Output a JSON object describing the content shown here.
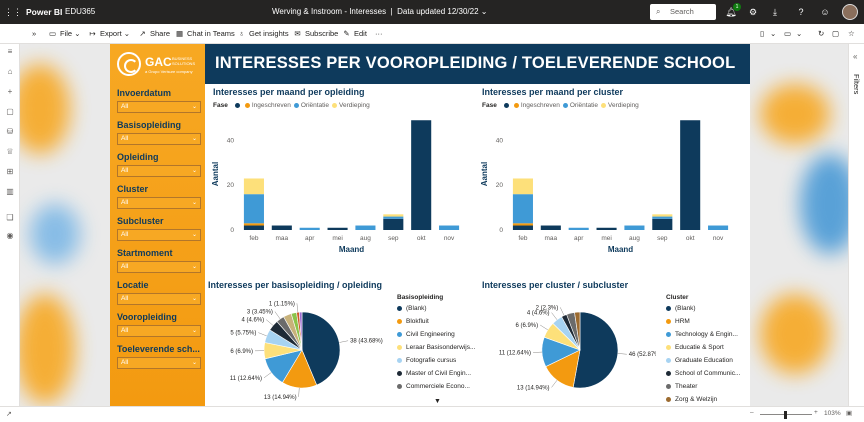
{
  "app": {
    "name": "Power BI",
    "workspace": "EDU365",
    "report_title": "Werving & Instroom - Interesses",
    "separator": "|",
    "data_updated": "Data updated 12/30/22",
    "search_placeholder": "Search",
    "notification_count": "1"
  },
  "toolbar": {
    "file": "File",
    "export": "Export",
    "share": "Share",
    "chat": "Chat in Teams",
    "insights": "Get insights",
    "subscribe": "Subscribe",
    "edit": "Edit",
    "more": "···"
  },
  "right_rail": {
    "filters": "Filters"
  },
  "logo": {
    "text": "GAC",
    "sub": "BUSINESS SOLUTIONS",
    "tagline": "a Grupo Verisure company"
  },
  "report": {
    "title": "INTERESSES PER VOOROPLEIDING / TOELEVERENDE SCHOOL"
  },
  "slicers": [
    {
      "label": "Invoerdatum",
      "value": "All"
    },
    {
      "label": "Basisopleiding",
      "value": "All"
    },
    {
      "label": "Opleiding",
      "value": "All"
    },
    {
      "label": "Cluster",
      "value": "All"
    },
    {
      "label": "Subcluster",
      "value": "All"
    },
    {
      "label": "Startmoment",
      "value": "All"
    },
    {
      "label": "Locatie",
      "value": "All"
    },
    {
      "label": "Vooropleiding",
      "value": "All"
    },
    {
      "label": "Toeleverende sch...",
      "value": "All"
    }
  ],
  "colors": {
    "navy": "#0e3a5c",
    "orange": "#f39a10",
    "blue": "#3f9ad6",
    "yellow": "#fde07a",
    "accent_orange": "#f7a823"
  },
  "legend_common": {
    "key": "Fase",
    "items": [
      "",
      "Ingeschreven",
      "Oriëntatie",
      "Verdieping"
    ]
  },
  "chart_data": [
    {
      "type": "bar",
      "stacked": true,
      "title": "Interesses per maand per opleiding",
      "xlabel": "Maand",
      "ylabel": "Aantal",
      "ylim": [
        0,
        50
      ],
      "yticks": [
        0,
        20,
        40
      ],
      "categories": [
        "feb",
        "maa",
        "apr",
        "mei",
        "aug",
        "sep",
        "okt",
        "nov"
      ],
      "series": [
        {
          "name": "",
          "color": "#0e3a5c",
          "values": [
            2,
            2,
            0,
            1,
            0,
            5,
            49,
            0
          ]
        },
        {
          "name": "Ingeschreven",
          "color": "#f39a10",
          "values": [
            1,
            0,
            0,
            0,
            0,
            0,
            0,
            0
          ]
        },
        {
          "name": "Oriëntatie",
          "color": "#3f9ad6",
          "values": [
            13,
            0,
            1,
            0,
            2,
            1,
            0,
            2
          ]
        },
        {
          "name": "Verdieping",
          "color": "#fde07a",
          "values": [
            7,
            0,
            0,
            0,
            0,
            1,
            0,
            0
          ]
        }
      ]
    },
    {
      "type": "bar",
      "stacked": true,
      "title": "Interesses per maand per cluster",
      "xlabel": "Maand",
      "ylabel": "Aantal",
      "ylim": [
        0,
        50
      ],
      "yticks": [
        0,
        20,
        40
      ],
      "categories": [
        "feb",
        "maa",
        "apr",
        "mei",
        "aug",
        "sep",
        "okt",
        "nov"
      ],
      "series": [
        {
          "name": "",
          "color": "#0e3a5c",
          "values": [
            2,
            2,
            0,
            1,
            0,
            5,
            49,
            0
          ]
        },
        {
          "name": "Ingeschreven",
          "color": "#f39a10",
          "values": [
            1,
            0,
            0,
            0,
            0,
            0,
            0,
            0
          ]
        },
        {
          "name": "Oriëntatie",
          "color": "#3f9ad6",
          "values": [
            13,
            0,
            1,
            0,
            2,
            1,
            0,
            2
          ]
        },
        {
          "name": "Verdieping",
          "color": "#fde07a",
          "values": [
            7,
            0,
            0,
            0,
            0,
            1,
            0,
            0
          ]
        }
      ]
    },
    {
      "type": "pie",
      "title": "Interesses per basisopleiding / opleiding",
      "legend_title": "Basisopleiding",
      "slices": [
        {
          "label": "(Blank)",
          "value": 38,
          "pct": "43.68%",
          "color": "#0e3a5c",
          "callout": "38 (43.68%)"
        },
        {
          "label": "Blokfluit",
          "value": 13,
          "pct": "14.94%",
          "color": "#f39a10",
          "callout": "13 (14.94%)"
        },
        {
          "label": "Civil Engineering",
          "value": 11,
          "pct": "12.64%",
          "color": "#3f9ad6",
          "callout": "11 (12.64%)"
        },
        {
          "label": "Leraar Basisonderwijs",
          "value": 6,
          "pct": "6.9%",
          "color": "#fde07a",
          "callout": "6 (6.9%)"
        },
        {
          "label": "Fotografie cursus",
          "value": 5,
          "pct": "5.75%",
          "color": "#a7d3f2",
          "callout": "5 (5.75%)"
        },
        {
          "label": "Master of Civil Engineering",
          "value": 4,
          "pct": "4.6%",
          "color": "#1e2a36",
          "callout": "4 (4.6%)"
        },
        {
          "label": "Commerciele Economie",
          "value": 3,
          "pct": "3.45%",
          "color": "#6b6b6b",
          "callout": "3 (3.45%)"
        },
        {
          "label": "",
          "value": 3,
          "pct": "",
          "color": "#c8b27a",
          "callout": ""
        },
        {
          "label": "",
          "value": 2,
          "pct": "",
          "color": "#8bc34a",
          "callout": ""
        },
        {
          "label": "",
          "value": 1,
          "pct": "1.15%",
          "color": "#d05a2a",
          "callout": "1 (1.15%)"
        },
        {
          "label": "",
          "value": 1,
          "pct": "",
          "color": "#9c6dd1",
          "callout": ""
        }
      ],
      "legend_items": [
        "(Blank)",
        "Blokfluit",
        "Civil Engineering",
        "Leraar Basisonderwijs...",
        "Fotografie cursus",
        "Master of Civil Engin...",
        "Commerciele Econo..."
      ]
    },
    {
      "type": "pie",
      "title": "Interesses per cluster / subcluster",
      "legend_title": "Cluster",
      "slices": [
        {
          "label": "(Blank)",
          "value": 46,
          "pct": "52.87%",
          "color": "#0e3a5c",
          "callout": "46 (52.87%)"
        },
        {
          "label": "HRM",
          "value": 13,
          "pct": "14.94%",
          "color": "#f39a10",
          "callout": "13 (14.94%)"
        },
        {
          "label": "Technology & Engineering",
          "value": 11,
          "pct": "12.64%",
          "color": "#3f9ad6",
          "callout": "11 (12.64%)"
        },
        {
          "label": "Educatie & Sport",
          "value": 6,
          "pct": "6.9%",
          "color": "#fde07a",
          "callout": "6 (6.9%)"
        },
        {
          "label": "Graduate Education",
          "value": 4,
          "pct": "4.6%",
          "color": "#a7d3f2",
          "callout": "4 (4.6%)"
        },
        {
          "label": "School of Communication",
          "value": 2,
          "pct": "2.3%",
          "color": "#1e2a36",
          "callout": "2 (2.3%)"
        },
        {
          "label": "Theater",
          "value": 3,
          "pct": "",
          "color": "#6b6b6b",
          "callout": ""
        },
        {
          "label": "Zorg & Welzijn",
          "value": 2,
          "pct": "",
          "color": "#9c6b30",
          "callout": ""
        }
      ],
      "legend_items": [
        "(Blank)",
        "HRM",
        "Technology & Engin...",
        "Educatie & Sport",
        "Graduate Education",
        "School of Communic...",
        "Theater",
        "Zorg & Welzijn"
      ]
    }
  ],
  "status": {
    "zoom": "103%",
    "minus": "–",
    "plus": "+"
  }
}
